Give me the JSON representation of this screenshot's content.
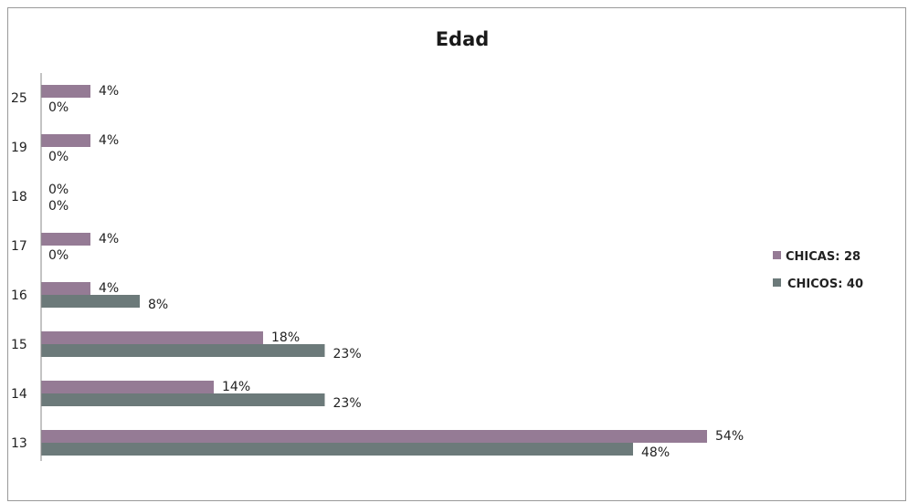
{
  "chart_data": {
    "type": "bar",
    "orientation": "horizontal",
    "title": "Edad",
    "xlabel": "",
    "ylabel": "",
    "categories": [
      "25",
      "19",
      "18",
      "17",
      "16",
      "15",
      "14",
      "13"
    ],
    "series": [
      {
        "name": "CHICAS: 28",
        "color": "#957b95",
        "values": [
          4,
          4,
          0,
          4,
          4,
          18,
          14,
          54
        ],
        "labels": [
          "4%",
          "4%",
          "0%",
          "4%",
          "4%",
          "18%",
          "14%",
          "54%"
        ]
      },
      {
        "name": "CHICOS: 40",
        "color": "#6c7a7a",
        "values": [
          0,
          0,
          0,
          0,
          8,
          23,
          23,
          48
        ],
        "labels": [
          "0%",
          "0%",
          "0%",
          "0%",
          "8%",
          "23%",
          "23%",
          "48%"
        ]
      }
    ],
    "xlim": [
      0,
      54
    ],
    "grid": false,
    "legend_position": "right"
  }
}
